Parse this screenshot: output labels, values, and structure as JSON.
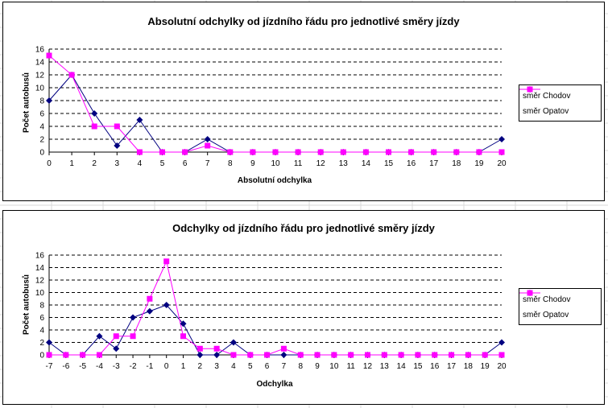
{
  "colors": {
    "series_chodov": "#000080",
    "series_opatov": "#ff00ff",
    "gridline": "#000000",
    "sheet_grid": "#d8d8d8"
  },
  "chart_data": [
    {
      "type": "line",
      "title": "Absolutní odchylky od jízdního řádu pro jednotlivé směry jízdy",
      "xlabel": "Absolutní odchylka",
      "ylabel": "Počet autobusů",
      "x": [
        0,
        1,
        2,
        3,
        4,
        5,
        6,
        7,
        8,
        9,
        10,
        11,
        12,
        13,
        14,
        15,
        16,
        17,
        18,
        19,
        20
      ],
      "ylim": [
        0,
        16
      ],
      "yticks": [
        0,
        2,
        4,
        6,
        8,
        10,
        12,
        14,
        16
      ],
      "grid": true,
      "legend_position": "right",
      "series": [
        {
          "name": "směr Chodov",
          "marker": "diamond",
          "values": [
            8,
            12,
            6,
            1,
            5,
            0,
            0,
            2,
            0,
            0,
            0,
            0,
            0,
            0,
            0,
            0,
            0,
            0,
            0,
            0,
            2
          ]
        },
        {
          "name": "směr Opatov",
          "marker": "square",
          "values": [
            15,
            12,
            4,
            4,
            0,
            0,
            0,
            1,
            0,
            0,
            0,
            0,
            0,
            0,
            0,
            0,
            0,
            0,
            0,
            0,
            0
          ]
        }
      ]
    },
    {
      "type": "line",
      "title": "Odchylky od jízdního řádu pro jednotlivé směry jízdy",
      "xlabel": "Odchylka",
      "ylabel": "Počet autobusů",
      "x": [
        -7,
        -6,
        -5,
        -4,
        -3,
        -2,
        -1,
        0,
        1,
        2,
        3,
        4,
        5,
        6,
        7,
        8,
        9,
        10,
        11,
        12,
        13,
        14,
        15,
        16,
        17,
        18,
        19,
        20
      ],
      "ylim": [
        0,
        16
      ],
      "yticks": [
        0,
        2,
        4,
        6,
        8,
        10,
        12,
        14,
        16
      ],
      "grid": true,
      "legend_position": "right",
      "series": [
        {
          "name": "směr Chodov",
          "marker": "diamond",
          "values": [
            2,
            0,
            0,
            3,
            1,
            6,
            7,
            8,
            5,
            0,
            0,
            2,
            0,
            0,
            0,
            0,
            0,
            0,
            0,
            0,
            0,
            0,
            0,
            0,
            0,
            0,
            0,
            2
          ]
        },
        {
          "name": "směr Opatov",
          "marker": "square",
          "values": [
            0,
            0,
            0,
            0,
            3,
            3,
            9,
            15,
            3,
            1,
            1,
            0,
            0,
            0,
            1,
            0,
            0,
            0,
            0,
            0,
            0,
            0,
            0,
            0,
            0,
            0,
            0,
            0
          ]
        }
      ]
    }
  ]
}
